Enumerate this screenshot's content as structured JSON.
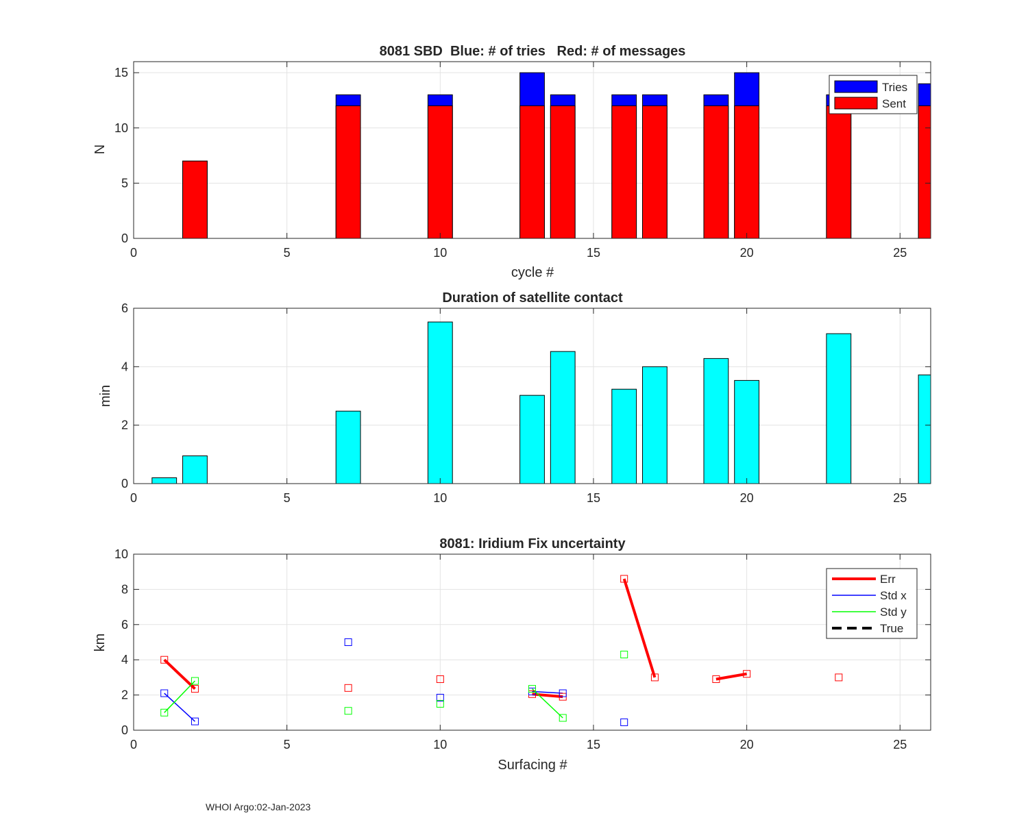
{
  "footer": "WHOI Argo:02-Jan-2023",
  "chart_data": [
    {
      "type": "bar",
      "title": "8081 SBD  Blue: # of tries   Red: # of messages",
      "xlabel": "cycle #",
      "ylabel": "N",
      "xlim": [
        0,
        26
      ],
      "ylim": [
        0,
        16
      ],
      "xticks": [
        0,
        5,
        10,
        15,
        20,
        25
      ],
      "yticks": [
        0,
        5,
        10,
        15
      ],
      "grid": true,
      "legend_position": "top-right",
      "categories": [
        2,
        7,
        10,
        13,
        14,
        16,
        17,
        19,
        20,
        23,
        26
      ],
      "series": [
        {
          "name": "Tries",
          "color": "#0000ff",
          "values": [
            7,
            13,
            13,
            15,
            13,
            13,
            13,
            13,
            15,
            13,
            14
          ]
        },
        {
          "name": "Sent",
          "color": "#ff0000",
          "values": [
            7,
            12,
            12,
            12,
            12,
            12,
            12,
            12,
            12,
            12,
            12
          ]
        }
      ]
    },
    {
      "type": "bar",
      "title": "Duration of satellite contact",
      "xlabel": "",
      "ylabel": "min",
      "xlim": [
        0,
        26
      ],
      "ylim": [
        0,
        6
      ],
      "xticks": [
        0,
        5,
        10,
        15,
        20,
        25
      ],
      "yticks": [
        0,
        2,
        4,
        6
      ],
      "grid": true,
      "color": "#00ffff",
      "categories": [
        1,
        2,
        7,
        10,
        13,
        14,
        16,
        17,
        19,
        20,
        23,
        26
      ],
      "values": [
        0.2,
        0.95,
        2.48,
        5.53,
        3.02,
        4.52,
        3.23,
        4.0,
        4.28,
        3.53,
        5.13,
        3.72
      ]
    },
    {
      "type": "line",
      "title": "8081: Iridium Fix uncertainty",
      "xlabel": "Surfacing #",
      "ylabel": "km",
      "xlim": [
        0,
        26
      ],
      "ylim": [
        0,
        10
      ],
      "xticks": [
        0,
        5,
        10,
        15,
        20,
        25
      ],
      "yticks": [
        0,
        2,
        4,
        6,
        8,
        10
      ],
      "grid": true,
      "legend_position": "top-right",
      "series": [
        {
          "name": "Err",
          "color": "#ff0000",
          "x": [
            1,
            2,
            7,
            10,
            13,
            14,
            16,
            17,
            19,
            20,
            23
          ],
          "y": [
            4.0,
            2.35,
            2.4,
            2.9,
            2.05,
            1.9,
            8.6,
            3.0,
            2.9,
            3.2,
            3.0
          ]
        },
        {
          "name": "Std x",
          "color": "#0000ff",
          "x": [
            1,
            2,
            7,
            10,
            13,
            14,
            16
          ],
          "y": [
            2.1,
            0.5,
            5.0,
            1.85,
            2.2,
            2.1,
            0.45
          ]
        },
        {
          "name": "Std y",
          "color": "#00ff00",
          "x": [
            1,
            2,
            7,
            10,
            13,
            14,
            16
          ],
          "y": [
            1.0,
            2.8,
            1.1,
            1.5,
            2.35,
            0.7,
            4.3
          ]
        },
        {
          "name": "True",
          "color": "#000000",
          "x": [],
          "y": []
        }
      ]
    }
  ]
}
